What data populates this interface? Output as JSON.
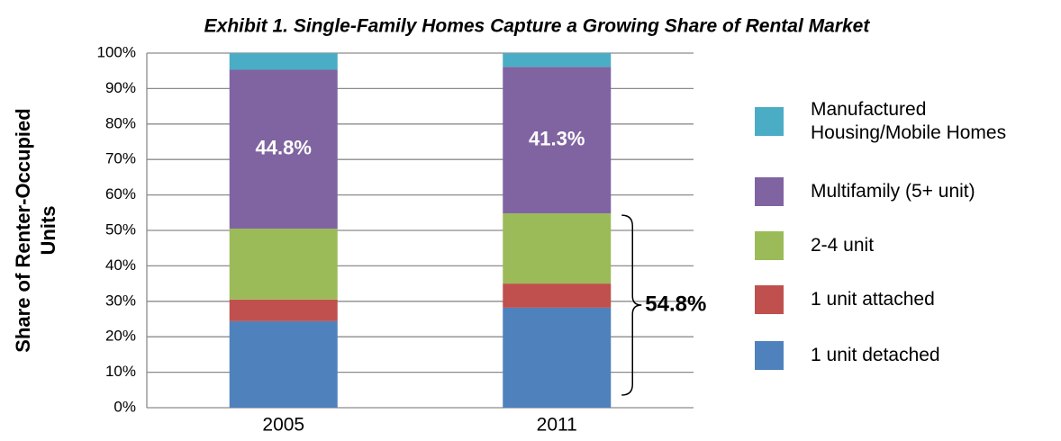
{
  "chart_data": {
    "type": "stacked_bar",
    "title": "Exhibit 1. Single-Family Homes Capture a Growing Share of Rental Market",
    "y_label": "Share of Renter-Occupied Units",
    "categories": [
      "2005",
      "2011"
    ],
    "series": [
      {
        "name": "1 unit detached",
        "color": "#4f81bd",
        "values": [
          24.4,
          28.2
        ]
      },
      {
        "name": "1 unit attached",
        "color": "#c0504d",
        "values": [
          6.1,
          6.8
        ]
      },
      {
        "name": "2-4 unit",
        "color": "#9bbb59",
        "values": [
          20.0,
          19.8
        ]
      },
      {
        "name": "Multifamily (5+ unit)",
        "color": "#8064a2",
        "values": [
          44.8,
          41.3
        ],
        "value_labels": [
          "44.8%",
          "41.3%"
        ]
      },
      {
        "name": "Manufactured Housing/Mobile Homes",
        "color": "#4bacc6",
        "values": [
          4.7,
          3.9
        ]
      }
    ],
    "annotation": "54.8%",
    "ylim": [
      0,
      100
    ],
    "yticks": [
      {
        "value": 0,
        "label": "0%"
      },
      {
        "value": 10,
        "label": "10%"
      },
      {
        "value": 20,
        "label": "20%"
      },
      {
        "value": 30,
        "label": "30%"
      },
      {
        "value": 40,
        "label": "40%"
      },
      {
        "value": 50,
        "label": "50%"
      },
      {
        "value": 60,
        "label": "60%"
      },
      {
        "value": 70,
        "label": "70%"
      },
      {
        "value": 80,
        "label": "80%"
      },
      {
        "value": 90,
        "label": "90%"
      },
      {
        "value": 100,
        "label": "100%"
      }
    ],
    "grid": true,
    "legend": "right"
  }
}
